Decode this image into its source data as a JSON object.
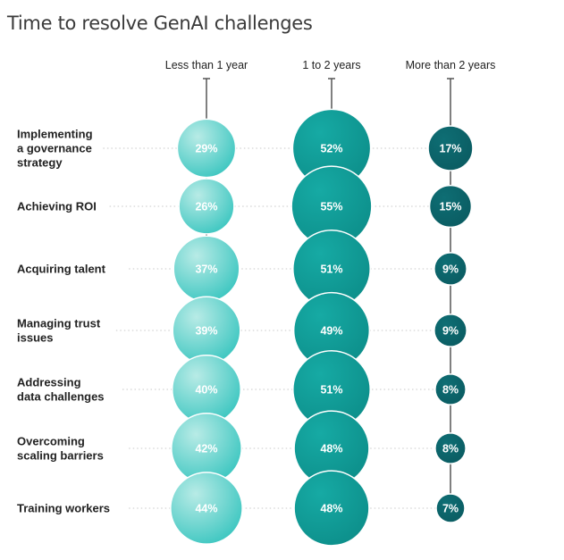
{
  "title": "Time to resolve GenAI challenges",
  "chart_data": {
    "type": "bubble",
    "title": "Time to resolve GenAI challenges",
    "columns": [
      "Less than 1 year",
      "1 to 2 years",
      "More than 2 years"
    ],
    "rows": [
      {
        "label": [
          "Implementing",
          "a governance",
          "strategy"
        ],
        "values": [
          29,
          52,
          17
        ]
      },
      {
        "label": [
          "Achieving ROI"
        ],
        "values": [
          26,
          55,
          15
        ]
      },
      {
        "label": [
          "Acquiring talent"
        ],
        "values": [
          37,
          51,
          9
        ]
      },
      {
        "label": [
          "Managing trust",
          "issues"
        ],
        "values": [
          39,
          49,
          9
        ]
      },
      {
        "label": [
          "Addressing",
          "data challenges"
        ],
        "values": [
          40,
          51,
          8
        ]
      },
      {
        "label": [
          "Overcoming",
          "scaling barriers"
        ],
        "values": [
          42,
          48,
          8
        ]
      },
      {
        "label": [
          "Training workers"
        ],
        "values": [
          44,
          48,
          7
        ]
      }
    ],
    "value_suffix": "%",
    "colors": {
      "Less than 1 year": [
        "#b8ebe6",
        "#2ec2bc"
      ],
      "1 to 2 years": [
        "#16aaa4",
        "#0c8c88"
      ],
      "More than 2 years": [
        "#0e6e74",
        "#0a5a60"
      ]
    }
  }
}
